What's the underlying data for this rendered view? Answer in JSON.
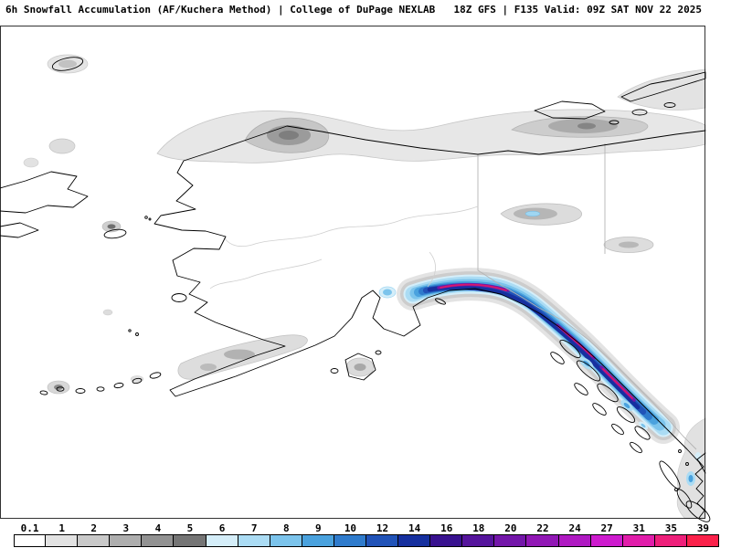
{
  "header": {
    "title_left": "6h Snowfall Accumulation (AF/Kuchera Method) | College of DuPage NEXLAB",
    "title_right": "18Z GFS | F135 Valid: 09Z SAT NOV 22 2025"
  },
  "chart_data": {
    "type": "heatmap",
    "title": "6h Snowfall Accumulation (AF/Kuchera Method)",
    "source": "College of DuPage NEXLAB",
    "model_run": "18Z GFS",
    "forecast_hour": "F135",
    "valid_time": "09Z SAT NOV 22 2025",
    "region_shown": "Alaska, Bering Sea, Yukon and Gulf of Alaska",
    "legend": {
      "tick_labels": [
        "0.1",
        "1",
        "2",
        "3",
        "4",
        "5",
        "6",
        "7",
        "8",
        "9",
        "10",
        "12",
        "14",
        "16",
        "18",
        "20",
        "22",
        "24",
        "27",
        "31",
        "35",
        "39"
      ],
      "colors": [
        "#ffffff",
        "#e2e2e2",
        "#c9c9c9",
        "#aeaeae",
        "#929292",
        "#757575",
        "#d5eef9",
        "#abdcf4",
        "#7cc4ec",
        "#4aa2de",
        "#2f7bcc",
        "#2153b8",
        "#16309f",
        "#38128f",
        "#55149c",
        "#7316a9",
        "#9117b5",
        "#af19c2",
        "#cd1bce",
        "#e11daa",
        "#ee1f7a",
        "#fb214a"
      ]
    },
    "notable_features": [
      {
        "area": "Arctic coast near Utqiagvik / Beaufort Sea",
        "value_range": "1-5"
      },
      {
        "area": "Canadian Arctic coast and islands (top right)",
        "value_range": "1-4"
      },
      {
        "area": "Gulf of Alaska coast (Kenai Peninsula to Yakutat)",
        "value_range": "6 to 30+ with embedded maxima"
      },
      {
        "area": "Southeast Alaska panhandle coastal mountains",
        "value_range": "6 to 30+ with embedded maxima"
      },
      {
        "area": "Alaska Peninsula and Kodiak Island",
        "value_range": "1-4"
      },
      {
        "area": "Interior Yukon patch east of the Alaska border",
        "value_range": "1-7"
      },
      {
        "area": "British Columbia coast (bottom right)",
        "value_range": "1-8"
      }
    ]
  }
}
